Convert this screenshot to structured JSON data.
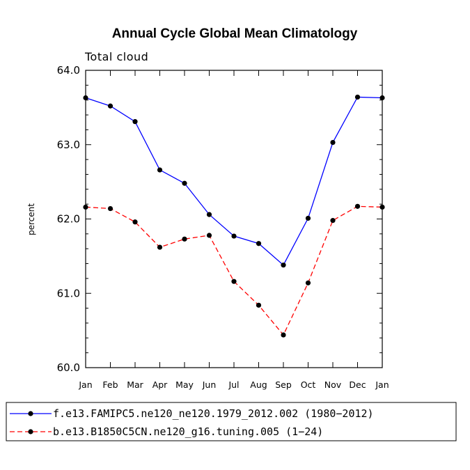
{
  "chart_data": {
    "type": "line",
    "title": "Annual Cycle Global Mean Climatology",
    "subtitle": "Total cloud",
    "xlabel": "",
    "ylabel": "percent",
    "ylim": [
      60.0,
      64.0
    ],
    "yticks": [
      "60.0",
      "61.0",
      "62.0",
      "63.0",
      "64.0"
    ],
    "categories": [
      "Jan",
      "Feb",
      "Mar",
      "Apr",
      "May",
      "Jun",
      "Jul",
      "Aug",
      "Sep",
      "Oct",
      "Nov",
      "Dec",
      "Jan"
    ],
    "series": [
      {
        "name": "f.e13.FAMIPC5.ne120_ne120.1979_2012.002 (1980−2012)",
        "color": "#0000ff",
        "dash": "solid",
        "values": [
          63.63,
          63.52,
          63.31,
          62.66,
          62.48,
          62.06,
          61.77,
          61.67,
          61.38,
          62.01,
          63.03,
          63.64,
          63.63
        ]
      },
      {
        "name": "b.e13.B1850C5CN.ne120_g16.tuning.005 (1−24)",
        "color": "#ff0000",
        "dash": "dashed",
        "values": [
          62.16,
          62.14,
          61.96,
          61.62,
          61.73,
          61.78,
          61.16,
          60.84,
          60.44,
          61.14,
          61.98,
          62.17,
          62.16
        ]
      }
    ],
    "legend_position": "bottom"
  }
}
